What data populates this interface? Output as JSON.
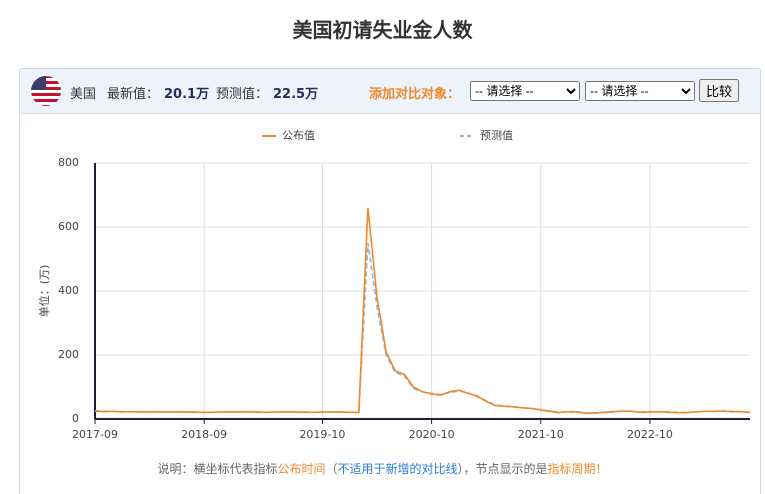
{
  "header": {
    "title": "美国初请失业金人数"
  },
  "info_bar": {
    "country": "美国",
    "latest_label": "最新值：",
    "latest_value": "20.1万",
    "forecast_label": "预测值：",
    "forecast_value": "22.5万",
    "compare_label": "添加对比对象：",
    "select_1": "-- 请选择 --",
    "select_2": "-- 请选择 --",
    "button": "比较"
  },
  "chart_data": {
    "type": "line",
    "y_label": "单位：(万)",
    "x": [
      "2017-09",
      "2017-10",
      "2017-11",
      "2017-12",
      "2018-01",
      "2018-02",
      "2018-03",
      "2018-04",
      "2018-05",
      "2018-06",
      "2018-07",
      "2018-08",
      "2018-09",
      "2018-10",
      "2018-11",
      "2018-12",
      "2019-01",
      "2019-02",
      "2019-03",
      "2019-04",
      "2019-05",
      "2019-06",
      "2019-07",
      "2019-08",
      "2019-09",
      "2019-10",
      "2019-11",
      "2019-12",
      "2020-01",
      "2020-02",
      "2020-03",
      "2020-04",
      "2020-05",
      "2020-06",
      "2020-07",
      "2020-08",
      "2020-09",
      "2020-10",
      "2020-11",
      "2020-12",
      "2021-01",
      "2021-02",
      "2021-03",
      "2021-04",
      "2021-05",
      "2021-06",
      "2021-07",
      "2021-08",
      "2021-09",
      "2021-10",
      "2021-11",
      "2021-12",
      "2022-01",
      "2022-02",
      "2022-03",
      "2022-04",
      "2022-05",
      "2022-06",
      "2022-07",
      "2022-08",
      "2022-09",
      "2022-10",
      "2022-11",
      "2022-12",
      "2023-01",
      "2023-02",
      "2023-03",
      "2023-04",
      "2023-05",
      "2023-06",
      "2023-07",
      "2023-08",
      "2023-09"
    ],
    "series": [
      {
        "name": "公布值",
        "color": "#f0882a",
        "dashed": false,
        "values": [
          26,
          23,
          24,
          22,
          23,
          22,
          22,
          23,
          22,
          22,
          22,
          21,
          21,
          21,
          22,
          22,
          22,
          23,
          21,
          21,
          22,
          22,
          22,
          21,
          21,
          22,
          22,
          22,
          21,
          21,
          660,
          380,
          210,
          150,
          140,
          100,
          85,
          78,
          75,
          85,
          90,
          80,
          72,
          55,
          42,
          40,
          38,
          35,
          33,
          28,
          24,
          20,
          23,
          22,
          18,
          19,
          21,
          23,
          25,
          24,
          21,
          22,
          23,
          21,
          20,
          20,
          22,
          24,
          24,
          25,
          23,
          23,
          20
        ]
      },
      {
        "name": "预测值",
        "color": "#8fb8e0",
        "dashed": true,
        "values": [
          25,
          24,
          24,
          23,
          23,
          23,
          22,
          22,
          22,
          22,
          22,
          22,
          21,
          21,
          22,
          22,
          22,
          22,
          22,
          21,
          22,
          22,
          22,
          22,
          21,
          21,
          22,
          22,
          21,
          21,
          550,
          350,
          200,
          145,
          135,
          95,
          85,
          80,
          76,
          82,
          88,
          82,
          70,
          57,
          44,
          40,
          38,
          35,
          33,
          29,
          25,
          21,
          22,
          22,
          19,
          19,
          20,
          22,
          24,
          24,
          22,
          22,
          23,
          22,
          21,
          20,
          22,
          24,
          24,
          25,
          24,
          23,
          21
        ]
      }
    ],
    "xlim": [
      "2017-09",
      "2023-09"
    ],
    "xticks": [
      "2017-09",
      "2018-09",
      "2019-10",
      "2020-10",
      "2021-10",
      "2022-10"
    ],
    "ylim": [
      0,
      800
    ],
    "yticks": [
      0,
      200,
      400,
      600,
      800
    ],
    "grid": true
  },
  "footnote": {
    "part_1": "说明：横坐标代表指标",
    "part_2": "公布时间",
    "part_3": "（",
    "part_4": "不适用于新增的对比线",
    "part_5": "），节点显示的是",
    "part_6": "指标周期！"
  }
}
